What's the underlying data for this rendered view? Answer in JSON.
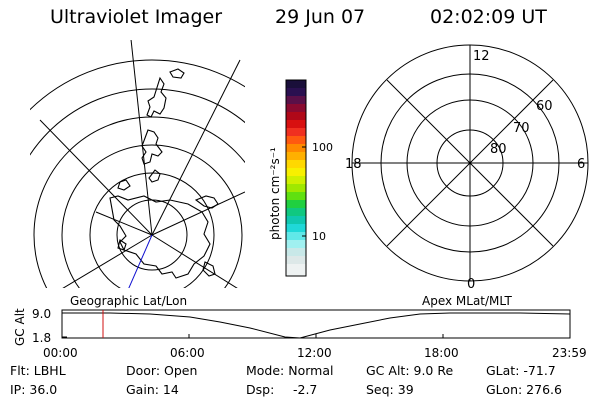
{
  "header": {
    "title": "Ultraviolet Imager",
    "date": "29 Jun 07",
    "time": "02:02:09 UT"
  },
  "colorbar": {
    "unit_label": "photon cm⁻²s⁻¹",
    "ticks": [
      "100",
      "10"
    ]
  },
  "polar_plot": {
    "clock_labels": [
      "12",
      "18",
      "6",
      "0"
    ],
    "lat_labels": [
      "60",
      "70",
      "80"
    ]
  },
  "timeline": {
    "left_title": "Geographic Lat/Lon",
    "right_title": "Apex MLat/MLT",
    "axis_label": "GC Alt",
    "y_ticks": [
      "9.0",
      "1.8"
    ],
    "x_ticks": [
      "00:00",
      "06:00",
      "12:00",
      "18:00",
      "23:59"
    ],
    "marker_time": "02:02:09",
    "marker_color": "#d01010"
  },
  "footer": {
    "flt": "Flt: LBHL",
    "ip": "IP: 36.0",
    "door": "Door: Open",
    "gain": "Gain: 14",
    "mode": "Mode: Normal",
    "dsp_label": "Dsp:",
    "dsp_value": "-2.7",
    "gcalt": "GC Alt: 9.0 Re",
    "seq": "Seq: 39",
    "glat": "GLat: -71.7",
    "glon": "GLon: 276.6"
  }
}
